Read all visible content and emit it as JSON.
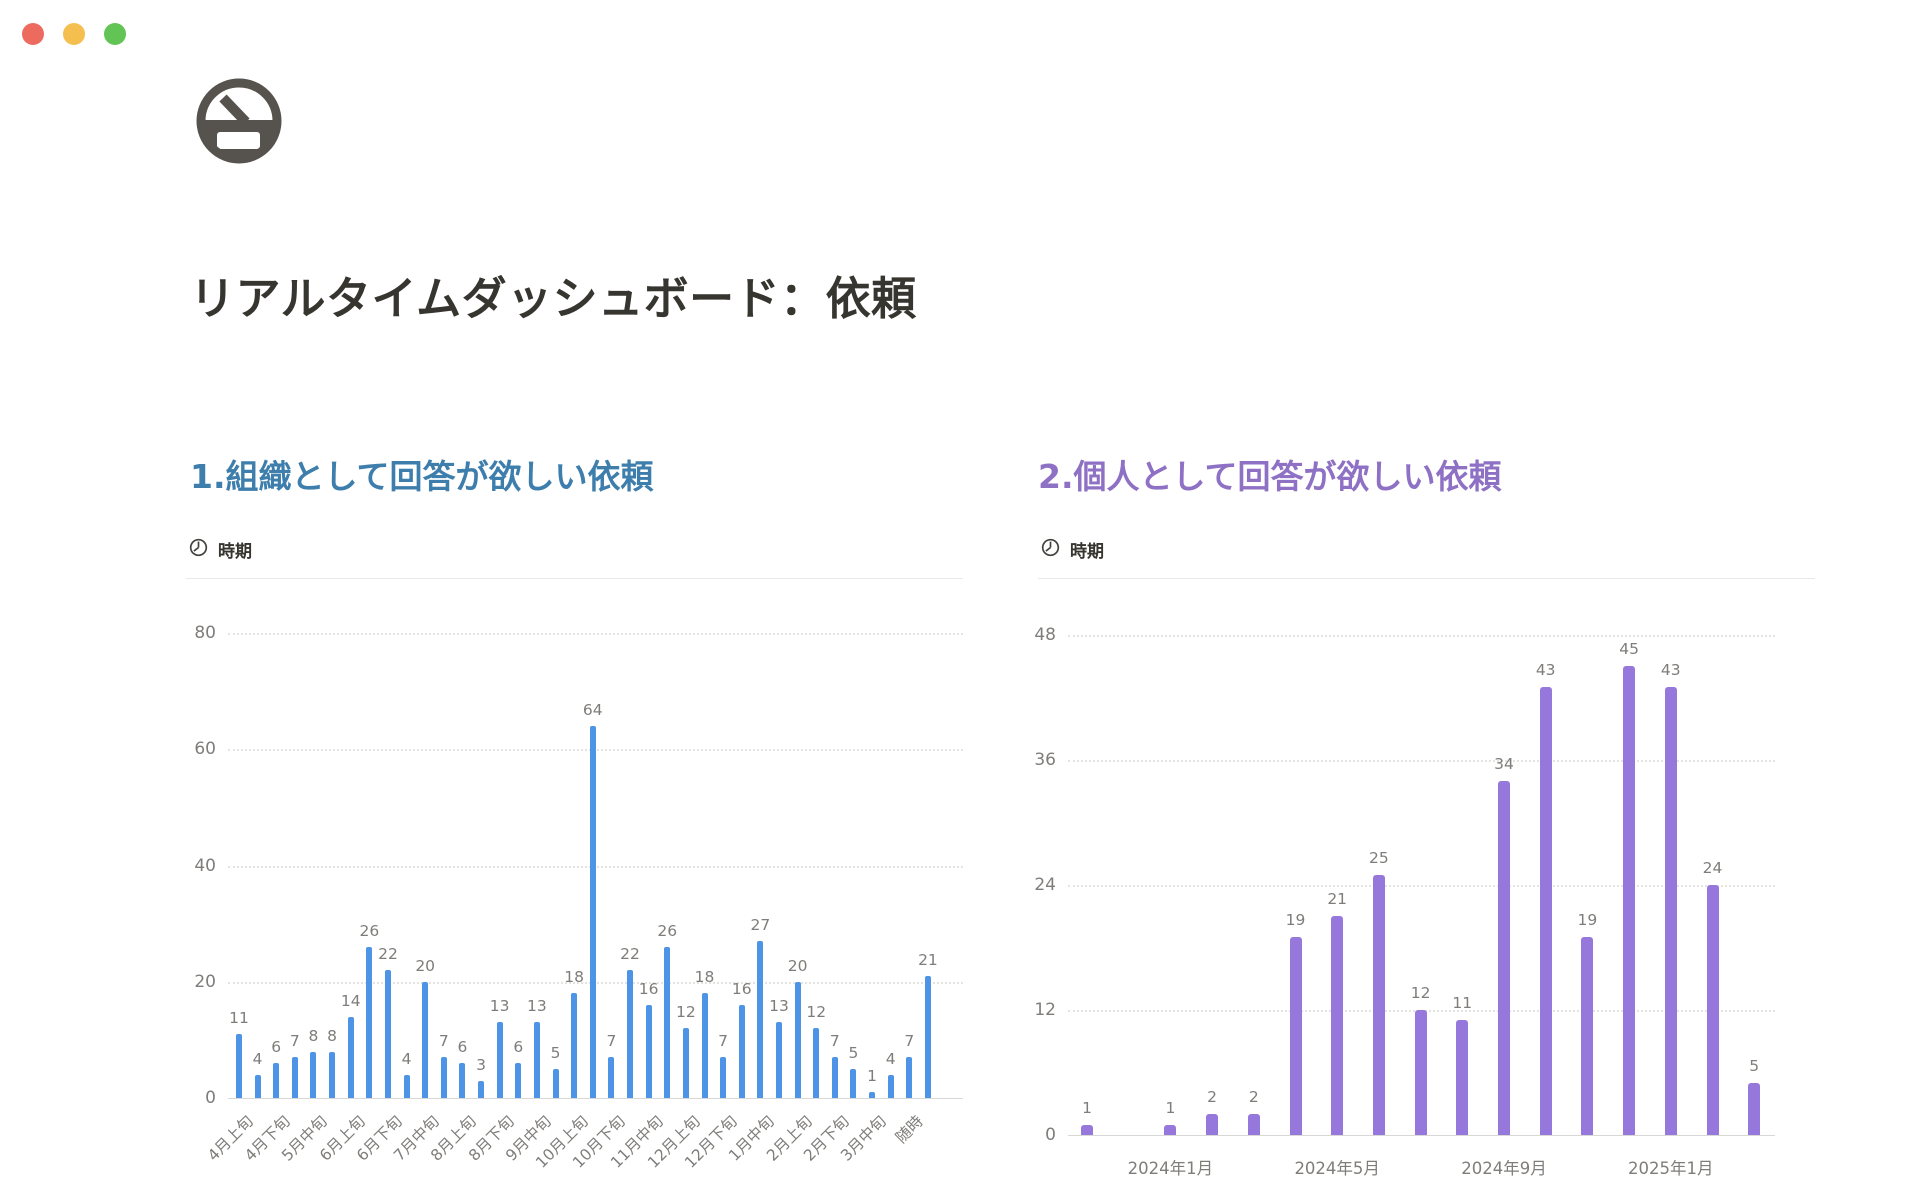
{
  "window_controls": {
    "close_color": "#EC6A5E",
    "minimize_color": "#F4BF4F",
    "zoom_color": "#61C454"
  },
  "page": {
    "icon": "gauge-icon",
    "icon_color": "#56524E",
    "title": "リアルタイムダッシュボード：依頼"
  },
  "sections": [
    {
      "heading": "1.組織として回答が欲しい依頼",
      "accent": "#3E7EAC",
      "property": {
        "icon": "clock-icon",
        "label": "時期"
      }
    },
    {
      "heading": "2.個人として回答が欲しい依頼",
      "accent": "#8E71C4",
      "property": {
        "icon": "clock-icon",
        "label": "時期"
      }
    }
  ],
  "chart_data": [
    {
      "type": "bar",
      "title": "1.組織として回答が欲しい依頼",
      "xlabel": "時期",
      "categories": [
        "4月上旬",
        "",
        "4月下旬",
        "",
        "5月中旬",
        "",
        "6月上旬",
        "",
        "6月下旬",
        "",
        "7月中旬",
        "",
        "8月上旬",
        "",
        "8月下旬",
        "",
        "9月中旬",
        "",
        "10月上旬",
        "",
        "10月下旬",
        "",
        "11月中旬",
        "",
        "12月上旬",
        "",
        "12月下旬",
        "",
        "1月中旬",
        "",
        "2月上旬",
        "",
        "2月下旬",
        "",
        "3月中旬",
        "",
        "随時",
        ""
      ],
      "values": [
        11,
        4,
        6,
        7,
        8,
        8,
        14,
        26,
        22,
        4,
        20,
        7,
        6,
        3,
        13,
        6,
        13,
        5,
        18,
        64,
        7,
        22,
        16,
        26,
        12,
        18,
        7,
        16,
        27,
        13,
        20,
        12,
        7,
        5,
        1,
        4,
        7,
        21
      ],
      "ylim": [
        0,
        80
      ],
      "yticks": [
        0,
        20,
        40,
        60,
        80
      ],
      "bar_color": "#4E94E6",
      "grid": true,
      "x_label_rotation": -45,
      "legend": "none"
    },
    {
      "type": "bar",
      "title": "2.個人として回答が欲しい依頼",
      "xlabel": "時期",
      "categories": [
        "",
        "",
        "2024年1月",
        "",
        "",
        "",
        "2024年5月",
        "",
        "",
        "",
        "2024年9月",
        "",
        "",
        "",
        "2025年1月",
        "",
        ""
      ],
      "values": [
        1,
        null,
        1,
        2,
        2,
        19,
        21,
        25,
        12,
        11,
        34,
        43,
        19,
        45,
        43,
        24,
        5
      ],
      "ylim": [
        0,
        48
      ],
      "yticks": [
        0,
        12,
        24,
        36,
        48
      ],
      "bar_color": "#9678DC",
      "grid": true,
      "x_label_rotation": 0,
      "legend": "none"
    }
  ]
}
